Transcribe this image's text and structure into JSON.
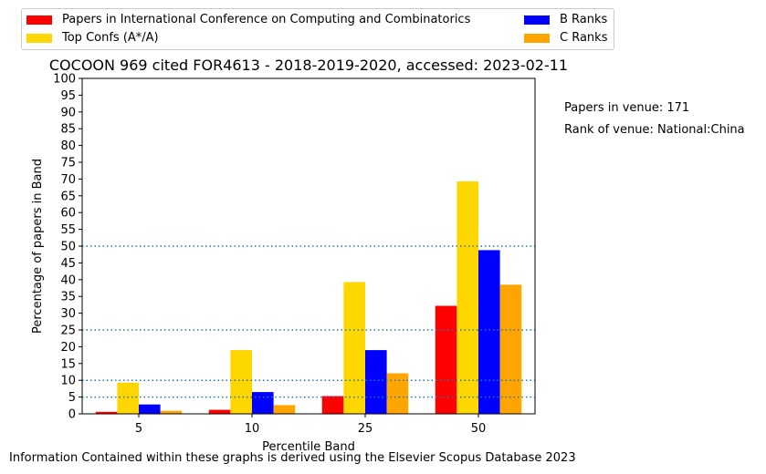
{
  "chart_data": {
    "type": "bar",
    "title": "COCOON 969 cited FOR4613 - 2018-2019-2020, accessed: 2023-02-11",
    "xlabel": "Percentile Band",
    "ylabel": "Percentage of papers in Band",
    "categories": [
      "5",
      "10",
      "25",
      "50"
    ],
    "ylim": [
      0,
      100
    ],
    "yticks": [
      0,
      5,
      10,
      15,
      20,
      25,
      30,
      35,
      40,
      45,
      50,
      55,
      60,
      65,
      70,
      75,
      80,
      85,
      90,
      95,
      100
    ],
    "reference_lines": [
      5,
      10,
      25,
      50
    ],
    "reference_line_color": "#1f77b4",
    "grid": false,
    "legend_position": "top",
    "series": [
      {
        "name": "Papers in International Conference on Computing and Combinatorics",
        "color": "#ff0000",
        "values": [
          0.6,
          1.2,
          5.3,
          32.2
        ]
      },
      {
        "name": "Top Confs (A*/A)",
        "color": "#ffd700",
        "values": [
          9.3,
          19.0,
          39.3,
          69.3
        ]
      },
      {
        "name": "B Ranks",
        "color": "#0000ff",
        "values": [
          2.8,
          6.5,
          19.0,
          48.8
        ]
      },
      {
        "name": "C Ranks",
        "color": "#ffa500",
        "values": [
          0.9,
          2.6,
          12.1,
          38.5
        ]
      }
    ]
  },
  "side_info": {
    "papers_in_venue": "Papers in venue: 171",
    "rank_of_venue": "Rank of venue: National:China"
  },
  "footer": "Information Contained within these graphs is derived using the Elsevier Scopus Database 2023"
}
